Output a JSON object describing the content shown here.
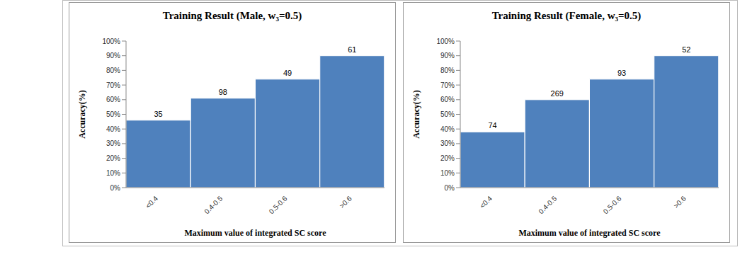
{
  "chart_data": [
    {
      "type": "bar",
      "title": "Training Result (Male, w₃=0.5)",
      "x_label": "Maximum value of integrated SC score",
      "y_label": "Accuracy(%)",
      "categories": [
        "<0.4",
        "0.4-0.5",
        "0.5-0.6",
        ">0.6"
      ],
      "values": [
        46,
        61,
        74,
        90
      ],
      "counts": [
        35,
        98,
        49,
        61
      ],
      "color": "#4f81bd",
      "ylim": [
        0,
        100
      ],
      "yticks": [
        {
          "value": 0,
          "label": "0%"
        },
        {
          "value": 10,
          "label": "10%"
        },
        {
          "value": 20,
          "label": "20%"
        },
        {
          "value": 30,
          "label": "30%"
        },
        {
          "value": 40,
          "label": "40%"
        },
        {
          "value": 50,
          "label": "50%"
        },
        {
          "value": 60,
          "label": "60%"
        },
        {
          "value": 70,
          "label": "70%"
        },
        {
          "value": 80,
          "label": "80%"
        },
        {
          "value": 90,
          "label": "90%"
        },
        {
          "value": 100,
          "label": "100%"
        }
      ],
      "grid": false
    },
    {
      "type": "bar",
      "title": "Training Result (Female, w₃=0.5)",
      "x_label": "Maximum value of integrated SC score",
      "y_label": "Accuracy(%)",
      "categories": [
        "<0.4",
        "0.4-0.5",
        "0.5-0.6",
        ">0.6"
      ],
      "values": [
        38,
        60,
        74,
        90
      ],
      "counts": [
        74,
        269,
        93,
        52
      ],
      "color": "#4f81bd",
      "ylim": [
        0,
        100
      ],
      "yticks": [
        {
          "value": 0,
          "label": "0%"
        },
        {
          "value": 10,
          "label": "10%"
        },
        {
          "value": 20,
          "label": "20%"
        },
        {
          "value": 30,
          "label": "30%"
        },
        {
          "value": 40,
          "label": "40%"
        },
        {
          "value": 50,
          "label": "50%"
        },
        {
          "value": 60,
          "label": "60%"
        },
        {
          "value": 70,
          "label": "70%"
        },
        {
          "value": 80,
          "label": "80%"
        },
        {
          "value": 90,
          "label": "90%"
        },
        {
          "value": 100,
          "label": "100%"
        }
      ],
      "grid": false
    }
  ]
}
